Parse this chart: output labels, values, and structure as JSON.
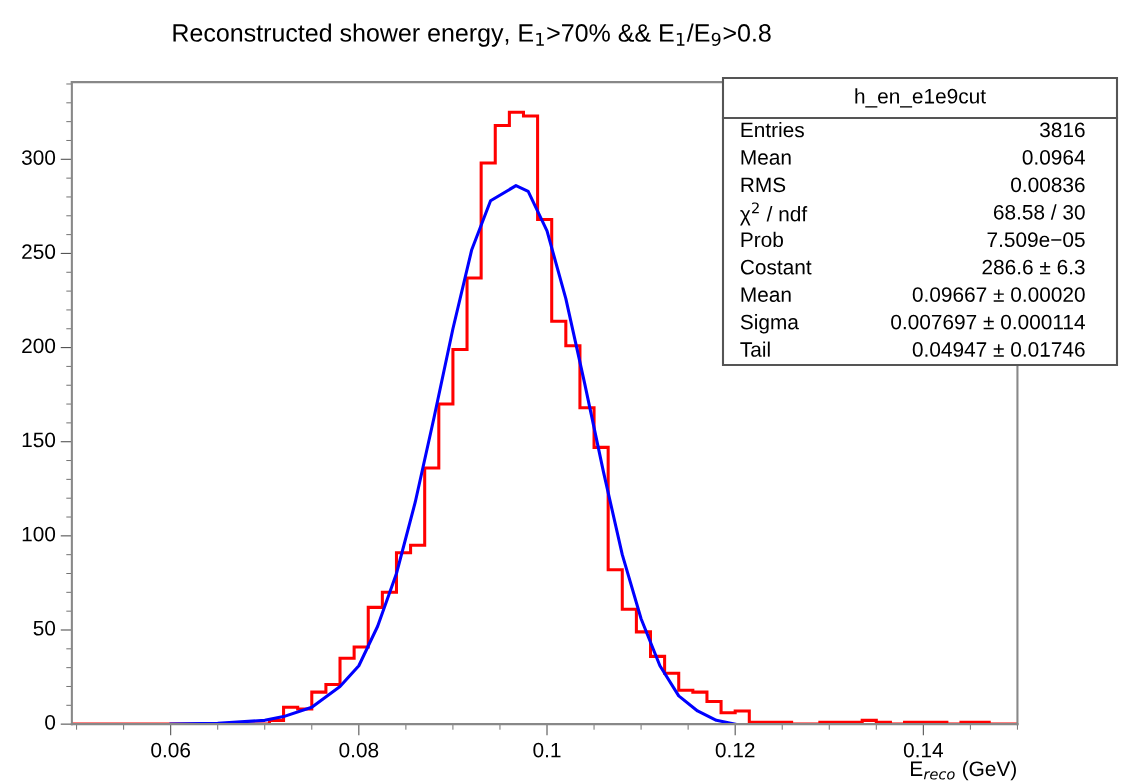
{
  "chart_data": {
    "type": "histogram",
    "title": "Reconstructed shower energy, E$_{1}$>70% && E$_{1}$/E$_{9}$>0.8",
    "xlabel": "E$_{reco}$ (GeV)",
    "bins": [
      0.0495,
      0.051,
      0.0525,
      0.054,
      0.0555,
      0.057,
      0.0585,
      0.06,
      0.0615,
      0.063,
      0.0645,
      0.066,
      0.0675,
      0.069,
      0.0705,
      0.072,
      0.0735,
      0.075,
      0.0765,
      0.078,
      0.0795,
      0.081,
      0.0825,
      0.084,
      0.0855,
      0.087,
      0.0885,
      0.09,
      0.0915,
      0.093,
      0.0945,
      0.096,
      0.0975,
      0.099,
      0.1005,
      0.102,
      0.1035,
      0.105,
      0.1065,
      0.108,
      0.1095,
      0.111,
      0.1125,
      0.114,
      0.1155,
      0.117,
      0.1185,
      0.12,
      0.1215,
      0.123,
      0.1245,
      0.126,
      0.1275,
      0.129,
      0.1305,
      0.132,
      0.1335,
      0.135,
      0.1365,
      0.138,
      0.1395,
      0.141,
      0.1425,
      0.144,
      0.1455,
      0.147,
      0.1485,
      0.15
    ],
    "series": [
      {
        "color": "#ff0000",
        "values": [
          0,
          0,
          0,
          0,
          0,
          0,
          0,
          0,
          0,
          0,
          0,
          0,
          0,
          0,
          2,
          9,
          8,
          17,
          21,
          35,
          41,
          62,
          70,
          91,
          95,
          136,
          170,
          199,
          237,
          298,
          318,
          325,
          323,
          268,
          214,
          201,
          168,
          147,
          82,
          61,
          49,
          36,
          27,
          18,
          17,
          12,
          6,
          7,
          1,
          1,
          1,
          0,
          0,
          1,
          1,
          1,
          2,
          1,
          0,
          1,
          1,
          1,
          0,
          1,
          1,
          0,
          0
        ]
      },
      {
        "type": "line",
        "color": "#0000ff",
        "x": [
          0.06,
          0.065,
          0.07,
          0.072,
          0.075,
          0.078,
          0.08,
          0.082,
          0.084,
          0.086,
          0.088,
          0.09,
          0.092,
          0.094,
          0.0967,
          0.098,
          0.1,
          0.102,
          0.104,
          0.106,
          0.108,
          0.11,
          0.112,
          0.114,
          0.116,
          0.118,
          0.12
        ],
        "values": [
          0,
          0.5,
          2,
          4,
          9,
          20,
          31,
          52,
          80,
          118,
          163,
          210,
          252,
          278,
          286,
          283,
          262,
          226,
          181,
          134,
          90,
          56,
          31,
          15,
          7,
          2,
          0
        ]
      }
    ],
    "xlim": [
      0.0495,
      0.15
    ],
    "ylim": [
      0,
      341
    ],
    "xticks": [
      0.06,
      0.08,
      0.1,
      0.12,
      0.14
    ],
    "yticks": [
      0,
      50,
      100,
      150,
      200,
      250,
      300
    ],
    "annotations": [
      "h_en_e1e9cut",
      "Entries",
      "3816",
      "Mean",
      "0.0964",
      "RMS",
      "0.00836",
      "χ$^{2}$ / ndf",
      "68.58 / 30",
      "Prob",
      "7.509e−05",
      "Costant",
      "286.6 ± 6.3",
      "Mean",
      "0.09667 ± 0.00020",
      "Sigma",
      "0.007697 ± 0.000114",
      "Tail",
      "0.04947 ± 0.01746"
    ]
  }
}
